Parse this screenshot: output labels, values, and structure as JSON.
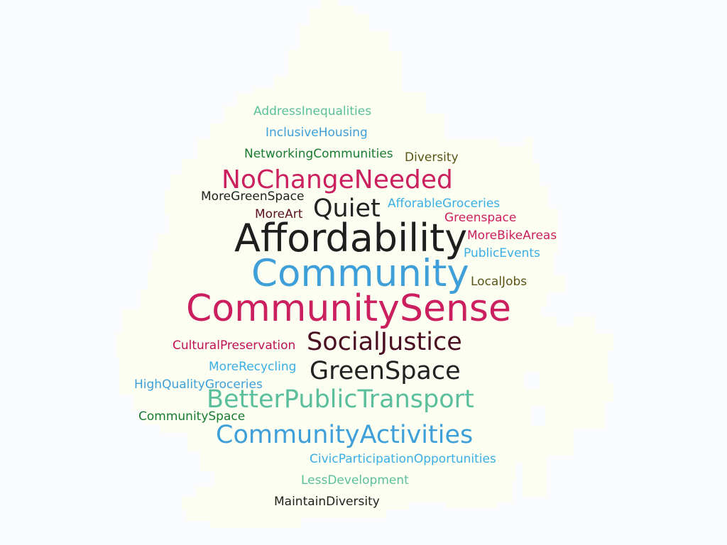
{
  "colors": {
    "background": "#fafbfd",
    "mask_fill": "#fbfef0"
  },
  "words": [
    {
      "id": "address-inequalities",
      "text": "AddressInequalities",
      "color": "#5bbf9d"
    },
    {
      "id": "inclusive-housing",
      "text": "InclusiveHousing",
      "color": "#3e9fd9"
    },
    {
      "id": "networking-communities",
      "text": "NetworkingCommunities",
      "color": "#1a7a34"
    },
    {
      "id": "diversity",
      "text": "Diversity",
      "color": "#5a5416"
    },
    {
      "id": "no-change-needed",
      "text": "NoChangeNeeded",
      "color": "#cc1f5f"
    },
    {
      "id": "more-green-space",
      "text": "MoreGreenSpace",
      "color": "#222222"
    },
    {
      "id": "quiet",
      "text": "Quiet",
      "color": "#222222"
    },
    {
      "id": "aforable-groceries",
      "text": "AfforableGroceries",
      "color": "#3aaee6"
    },
    {
      "id": "more-art",
      "text": "MoreArt",
      "color": "#5a0f24"
    },
    {
      "id": "greenspace",
      "text": "Greenspace",
      "color": "#cc1f5f"
    },
    {
      "id": "affordability",
      "text": "Affordability",
      "color": "#1e1e1e"
    },
    {
      "id": "more-bike-areas",
      "text": "MoreBikeAreas",
      "color": "#cc1f5f"
    },
    {
      "id": "public-events",
      "text": "PublicEvents",
      "color": "#3aaee6"
    },
    {
      "id": "community",
      "text": "Community",
      "color": "#3e9fd9"
    },
    {
      "id": "local-jobs",
      "text": "LocalJobs",
      "color": "#5a5416"
    },
    {
      "id": "community-sense",
      "text": "CommunitySense",
      "color": "#cc1f5f"
    },
    {
      "id": "cultural-preservation",
      "text": "CulturalPreservation",
      "color": "#c01055"
    },
    {
      "id": "social-justice",
      "text": "SocialJustice",
      "color": "#4a0d22"
    },
    {
      "id": "more-recycling",
      "text": "MoreRecycling",
      "color": "#3aaee6"
    },
    {
      "id": "green-space",
      "text": "GreenSpace",
      "color": "#222222"
    },
    {
      "id": "high-quality-groceries",
      "text": "HighQualityGroceries",
      "color": "#3e9fd9"
    },
    {
      "id": "better-public-transport",
      "text": "BetterPublicTransport",
      "color": "#5bbf9d"
    },
    {
      "id": "community-space",
      "text": "CommunitySpace",
      "color": "#1a7a34"
    },
    {
      "id": "community-activities",
      "text": "CommunityActivities",
      "color": "#3e9fd9"
    },
    {
      "id": "civic-participation-opportunities",
      "text": "CivicParticipationOpportunities",
      "color": "#3aaee6"
    },
    {
      "id": "less-development",
      "text": "LessDevelopment",
      "color": "#5bbf9d"
    },
    {
      "id": "maintain-diversity",
      "text": "MaintainDiversity",
      "color": "#222222"
    }
  ]
}
